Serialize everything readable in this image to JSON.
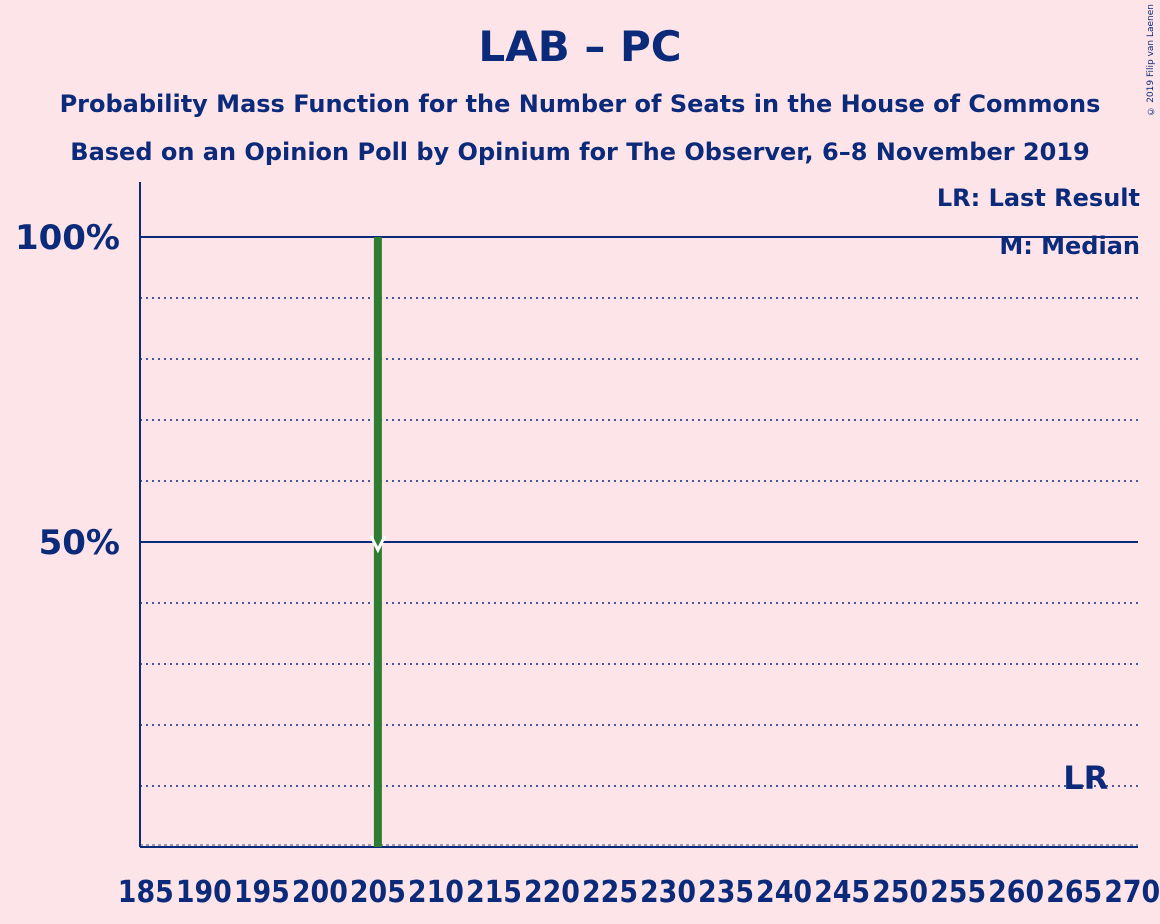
{
  "title": "LAB – PC",
  "subtitle1": "Probability Mass Function for the Number of Seats in the House of Commons",
  "subtitle2": "Based on an Opinion Poll by Opinium for The Observer, 6–8 November 2019",
  "copyright": "© 2019 Filip van Laenen",
  "legend": {
    "last_result": "LR: Last Result",
    "median": "M: Median"
  },
  "lr_label": "LR",
  "colors": {
    "background": "#fde4e8",
    "text": "#0b2a7a",
    "bar": "#2f7d32"
  },
  "chart_data": {
    "type": "bar",
    "x": [
      205
    ],
    "values": [
      100
    ],
    "xlim": [
      185,
      270
    ],
    "ylim": [
      0,
      100
    ],
    "xticks": [
      185,
      190,
      195,
      200,
      205,
      210,
      215,
      220,
      225,
      230,
      235,
      240,
      245,
      250,
      255,
      260,
      265,
      270
    ],
    "ytick_labels": [
      {
        "value": 50,
        "label": "50%"
      },
      {
        "value": 100,
        "label": "100%"
      }
    ],
    "minor_gridlines": [
      10,
      20,
      30,
      40,
      60,
      70,
      80,
      90
    ],
    "median": 205,
    "last_result": 266
  }
}
